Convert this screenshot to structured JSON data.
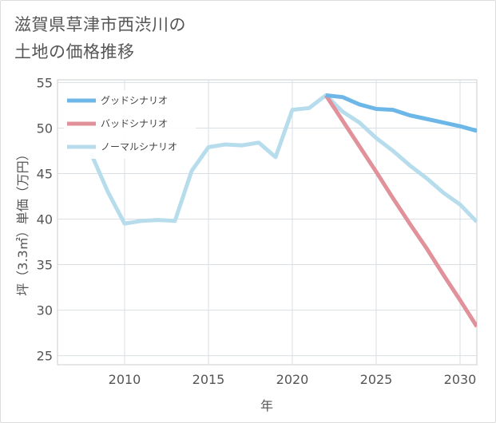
{
  "title_lines": [
    "滋賀県草津市西渋川の",
    "土地の価格推移"
  ],
  "chart_data": {
    "type": "line",
    "xlabel": "年",
    "ylabel": "坪（3.3㎡）単価（万円）",
    "xlim": [
      2006,
      2031
    ],
    "ylim": [
      24,
      55.3
    ],
    "xticks": [
      2010,
      2015,
      2020,
      2025,
      2030
    ],
    "yticks": [
      25,
      30,
      35,
      40,
      45,
      50,
      55
    ],
    "grid": true,
    "legend_position": "top-left",
    "series": [
      {
        "name": "グッドシナリオ",
        "color": "#6cb6e8",
        "x": [
          2022,
          2023,
          2024,
          2025,
          2026,
          2027,
          2028,
          2029,
          2030,
          2031
        ],
        "y": [
          53.6,
          53.4,
          52.6,
          52.1,
          52.0,
          51.4,
          51.0,
          50.6,
          50.2,
          49.7
        ]
      },
      {
        "name": "バッドシナリオ",
        "color": "#e0919a",
        "x": [
          2022,
          2023,
          2024,
          2025,
          2026,
          2027,
          2028,
          2029,
          2030,
          2031
        ],
        "y": [
          53.6,
          50.8,
          48.0,
          45.2,
          42.3,
          39.5,
          36.8,
          33.9,
          31.1,
          28.2
        ]
      },
      {
        "name": "ノーマルシナリオ",
        "color": "#b7dded",
        "x": [
          2008,
          2009,
          2010,
          2011,
          2012,
          2013,
          2014,
          2015,
          2016,
          2017,
          2018,
          2019,
          2020,
          2021,
          2022,
          2023,
          2024,
          2025,
          2026,
          2027,
          2028,
          2029,
          2030,
          2031
        ],
        "y": [
          47.2,
          43.0,
          39.5,
          39.8,
          39.9,
          39.8,
          45.3,
          47.9,
          48.2,
          48.1,
          48.4,
          46.8,
          52.0,
          52.2,
          53.6,
          51.8,
          50.6,
          48.9,
          47.5,
          45.9,
          44.5,
          42.9,
          41.6,
          39.7
        ]
      }
    ]
  }
}
